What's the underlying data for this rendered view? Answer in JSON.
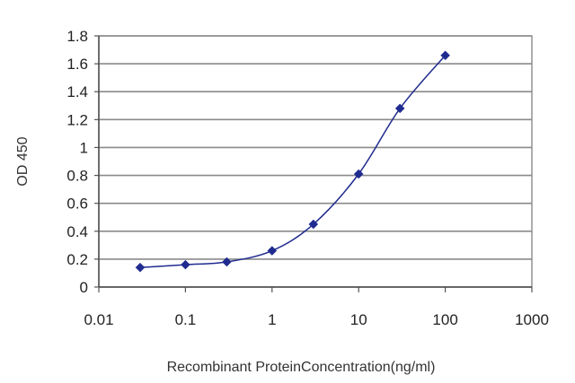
{
  "chart_data": {
    "type": "line",
    "title": "",
    "xlabel": "Recombinant ProteinConcentration(ng/ml)",
    "ylabel": "OD 450",
    "x_scale": "log",
    "xlim": [
      0.01,
      1000
    ],
    "ylim": [
      0,
      1.8
    ],
    "x_ticks": [
      "0.01",
      "0.1",
      "1",
      "10",
      "100",
      "1000"
    ],
    "y_ticks": [
      "0",
      "0.2",
      "0.4",
      "0.6",
      "0.8",
      "1",
      "1.2",
      "1.4",
      "1.6",
      "1.8"
    ],
    "grid": "horizontal",
    "legend": "none",
    "series": [
      {
        "x": [
          0.03,
          0.1,
          0.3,
          1,
          3,
          10,
          30,
          100
        ],
        "y": [
          0.14,
          0.16,
          0.18,
          0.26,
          0.45,
          0.81,
          1.28,
          1.66
        ],
        "color": "#1f2b8f",
        "marker": "diamond"
      }
    ]
  }
}
